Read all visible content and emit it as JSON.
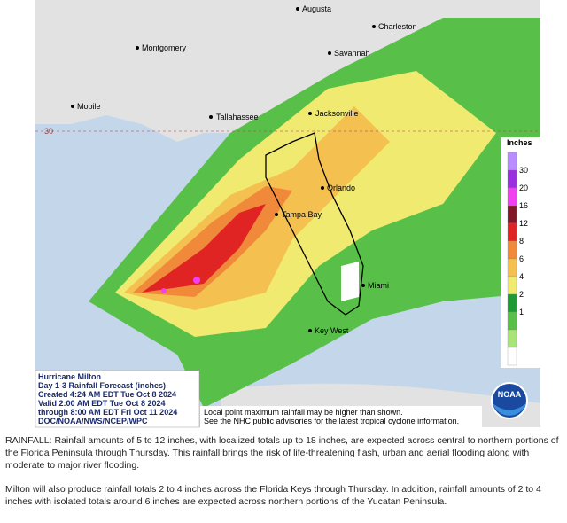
{
  "map": {
    "cities": [
      "Augusta",
      "Charleston",
      "Montgomery",
      "Savannah",
      "Mobile",
      "Tallahassee",
      "Jacksonville",
      "Orlando",
      "Tampa Bay",
      "Miami",
      "Key West"
    ],
    "latitude_label": "30",
    "legend": {
      "title": "Inches",
      "ticks": [
        "30",
        "20",
        "16",
        "12",
        "8",
        "6",
        "4",
        "2",
        "1"
      ],
      "colors": [
        "#b98cff",
        "#9b30e0",
        "#f040f0",
        "#801828",
        "#e02424",
        "#f08a3a",
        "#f4c050",
        "#f0ea70",
        "#1e9a34",
        "#58c048",
        "#a8e478",
        "#ffffff"
      ]
    },
    "info_box": [
      "Hurricane Milton",
      "Day 1-3 Rainfall Forecast (inches)",
      "Created 4:24 AM EDT Tue Oct 8 2024",
      "Valid 2:00 AM EDT Tue Oct 8 2024",
      "through 8:00 AM EDT Fri Oct 11 2024",
      "DOC/NOAA/NWS/NCEP/WPC"
    ],
    "disclaimer": [
      "Local point maximum rainfall may be higher than shown.",
      "See the NHC public advisories for the latest tropical cyclone information."
    ],
    "logo": "NOAA"
  },
  "text": [
    "RAINFALL: Rainfall amounts of 5 to 12 inches, with localized totals up to 18 inches, are expected across central to northern portions of the Florida Peninsula through Thursday. This rainfall brings the risk of life-threatening flash, urban and aerial flooding along with moderate to major river flooding.",
    "Milton will also produce rainfall totals 2 to 4 inches across the Florida Keys through Thursday. In addition, rainfall amounts of 2 to 4 inches with isolated totals around 6 inches are expected across northern portions of the Yucatan Peninsula."
  ]
}
